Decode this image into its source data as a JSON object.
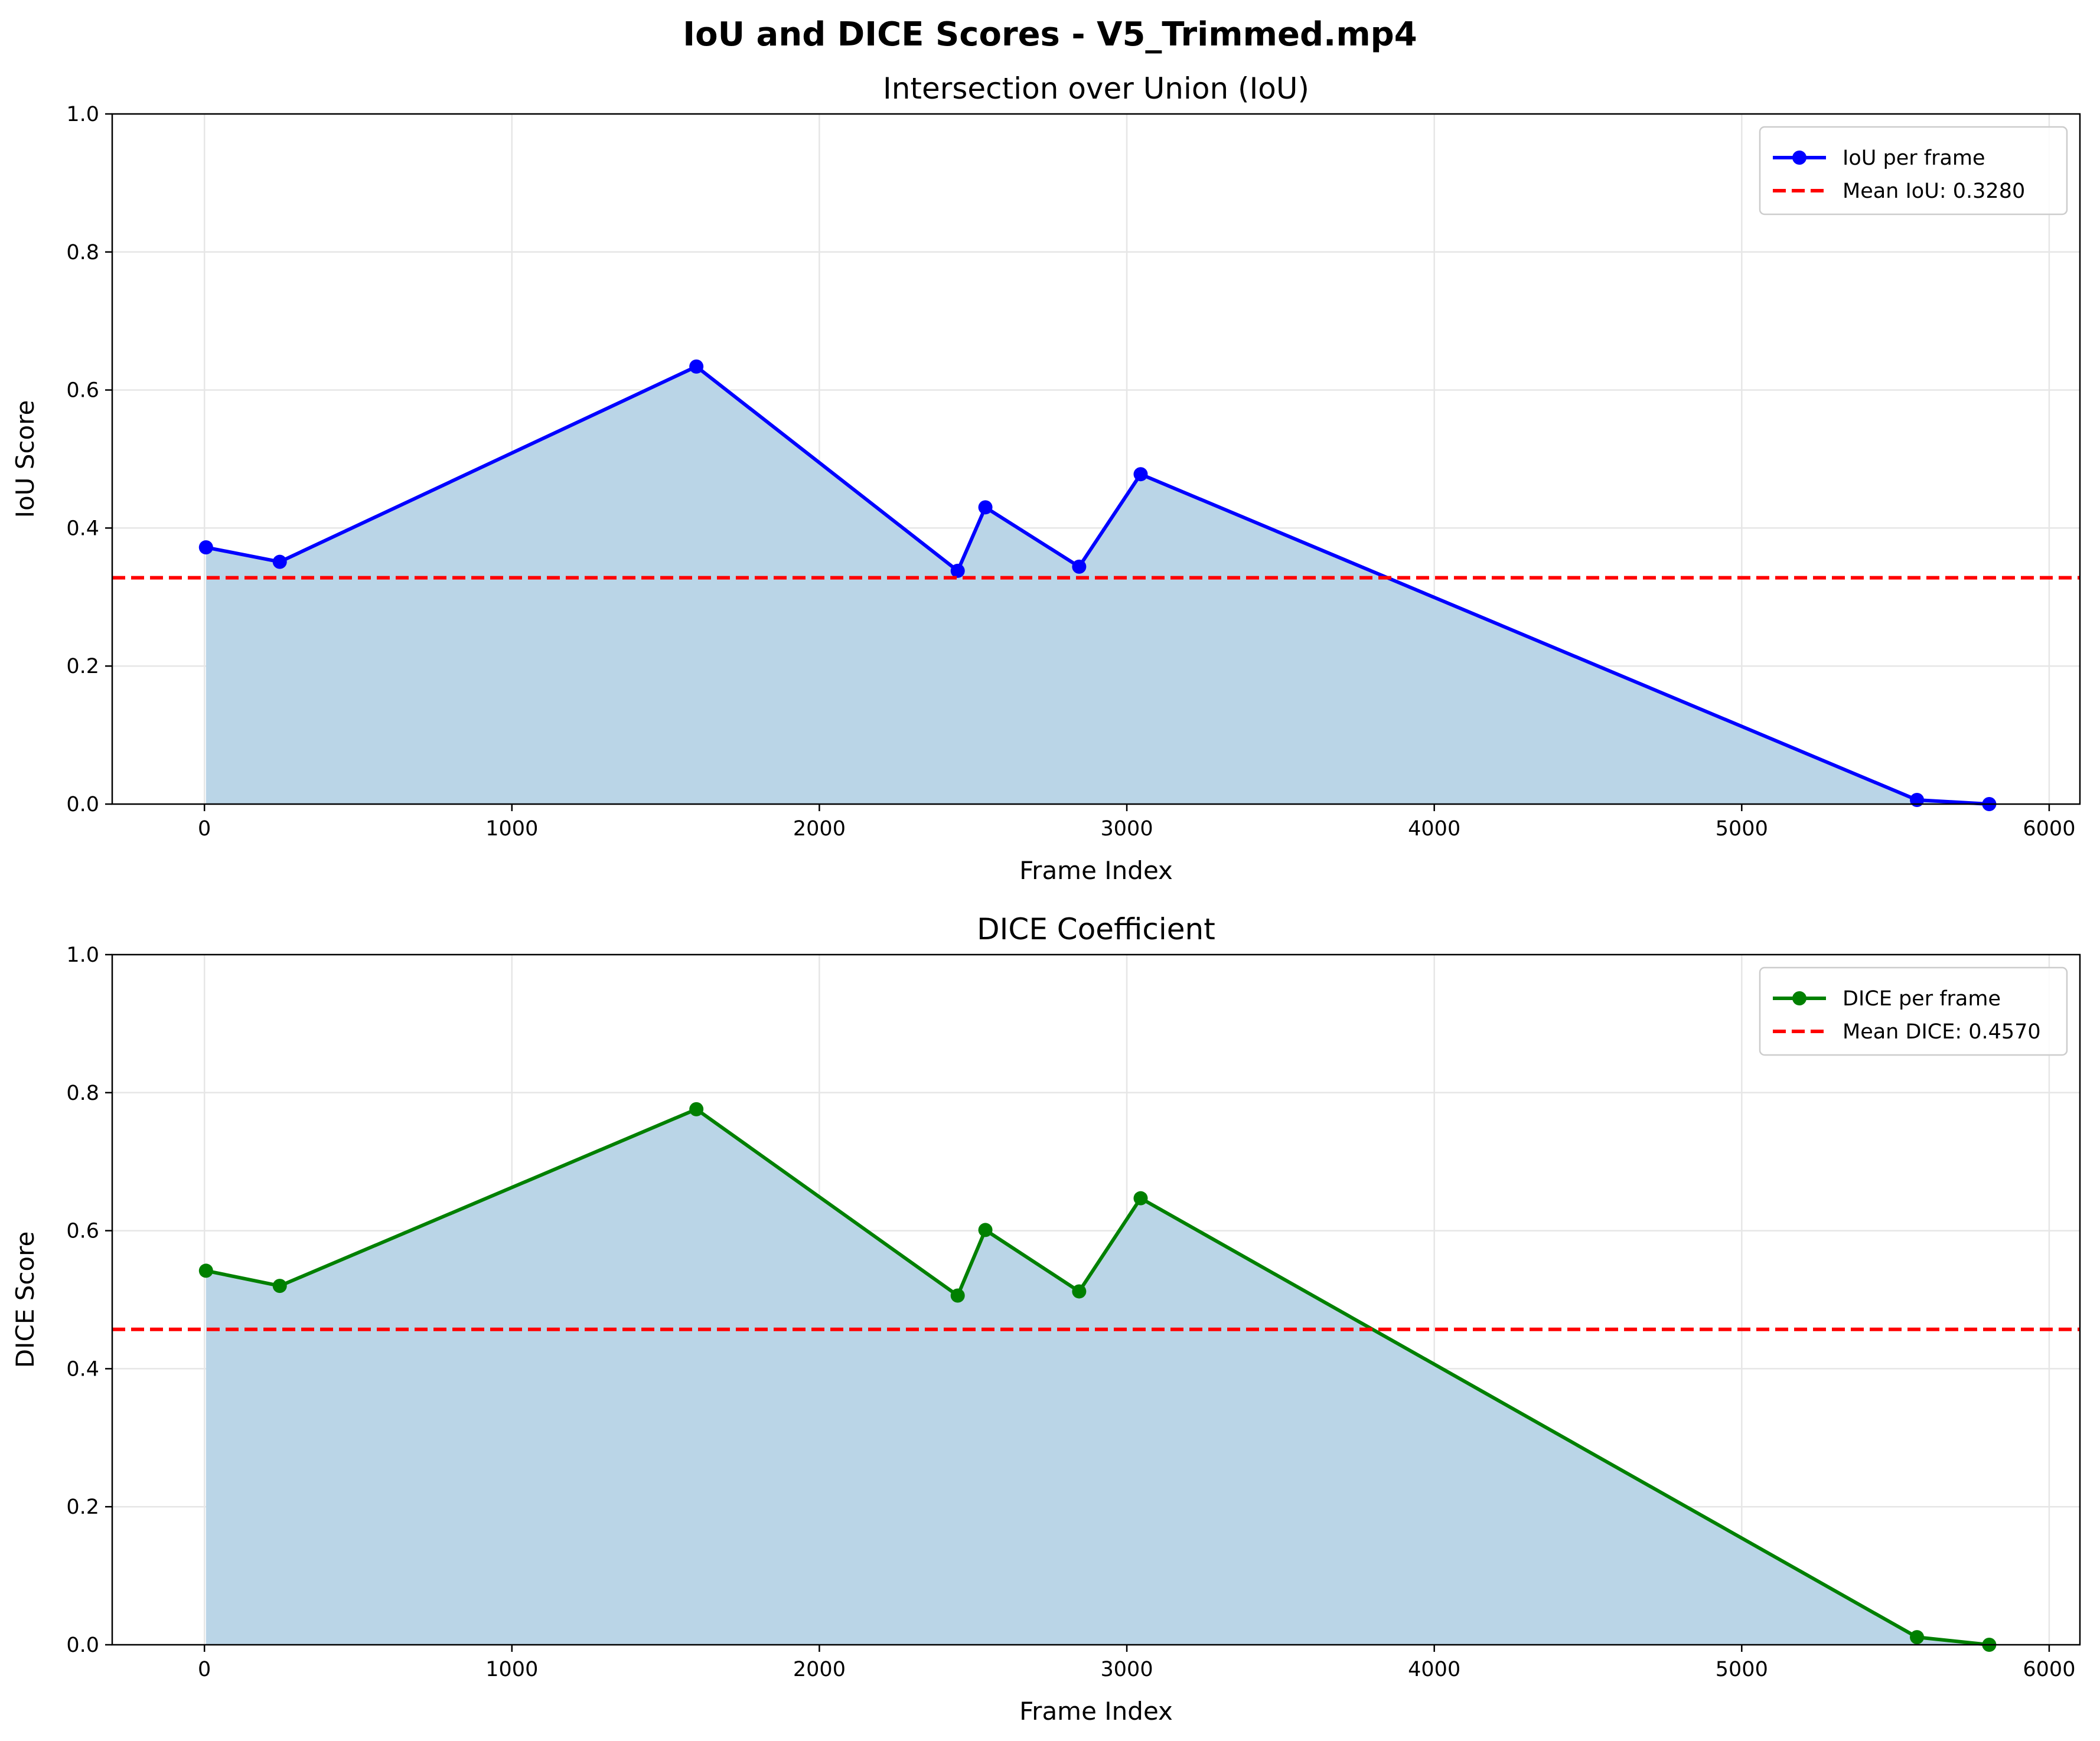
{
  "figure": {
    "suptitle": "IoU and DICE Scores - V5_Trimmed.mp4"
  },
  "chart_data": [
    {
      "type": "line",
      "title": "Intersection over Union (IoU)",
      "xlabel": "Frame Index",
      "ylabel": "IoU Score",
      "xlim": [
        -300,
        6100
      ],
      "ylim": [
        0,
        1
      ],
      "xticks": [
        0,
        1000,
        2000,
        3000,
        4000,
        5000,
        6000
      ],
      "yticks": [
        0.0,
        0.2,
        0.4,
        0.6,
        0.8,
        1.0
      ],
      "grid": true,
      "legend_position": "top-right",
      "fill_under": true,
      "fill_color": "#b9d4e7",
      "series": [
        {
          "name": "IoU per frame",
          "color": "#0000ff",
          "marker": "circle",
          "x": [
            5,
            245,
            1600,
            2450,
            2540,
            2845,
            3045,
            5570,
            5805
          ],
          "y": [
            0.372,
            0.351,
            0.634,
            0.338,
            0.43,
            0.344,
            0.478,
            0.006,
            0.0
          ]
        }
      ],
      "reference_line": {
        "name": "Mean IoU: 0.3280",
        "y": 0.328,
        "color": "#ff0000",
        "style": "dashed"
      }
    },
    {
      "type": "line",
      "title": "DICE Coefficient",
      "xlabel": "Frame Index",
      "ylabel": "DICE Score",
      "xlim": [
        -300,
        6100
      ],
      "ylim": [
        0,
        1
      ],
      "xticks": [
        0,
        1000,
        2000,
        3000,
        4000,
        5000,
        6000
      ],
      "yticks": [
        0.0,
        0.2,
        0.4,
        0.6,
        0.8,
        1.0
      ],
      "grid": true,
      "legend_position": "top-right",
      "fill_under": true,
      "fill_color": "#b9d4e7",
      "series": [
        {
          "name": "DICE per frame",
          "color": "#008000",
          "marker": "circle",
          "x": [
            5,
            245,
            1600,
            2450,
            2540,
            2845,
            3045,
            5570,
            5805
          ],
          "y": [
            0.542,
            0.52,
            0.776,
            0.506,
            0.601,
            0.512,
            0.647,
            0.011,
            0.0
          ]
        }
      ],
      "reference_line": {
        "name": "Mean DICE: 0.4570",
        "y": 0.457,
        "color": "#ff0000",
        "style": "dashed"
      }
    }
  ]
}
